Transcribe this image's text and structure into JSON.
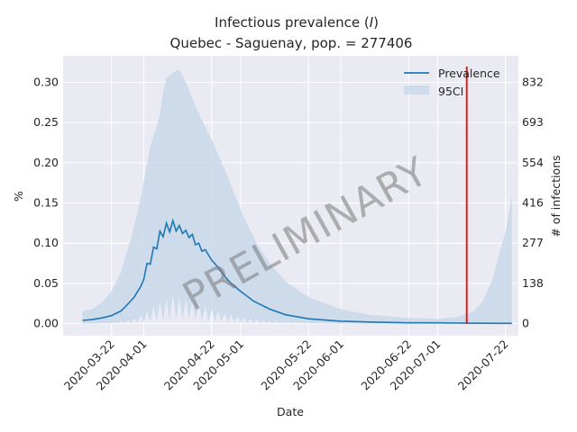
{
  "chart_data": {
    "type": "line",
    "title_line1": "Infectious prevalence (",
    "title_italic": "I",
    "title_line1_end": ")",
    "title_line2": "Quebec - Saguenay, pop. = 277406",
    "xlabel": "Date",
    "ylabel": "%",
    "ylabel_right": "# of infections",
    "watermark": "PRELIMINARY",
    "ylim": [
      -0.015,
      0.333
    ],
    "yticks": [
      0.0,
      0.05,
      0.1,
      0.15,
      0.2,
      0.25,
      0.3
    ],
    "ytick_labels": [
      "0.00",
      "0.05",
      "0.10",
      "0.15",
      "0.20",
      "0.25",
      "0.30"
    ],
    "yticks_right": [
      0,
      138,
      277,
      416,
      554,
      693,
      832
    ],
    "xlim": [
      "2020-03-07",
      "2020-07-26"
    ],
    "xticks": [
      "2020-03-22",
      "2020-04-01",
      "2020-04-22",
      "2020-05-01",
      "2020-05-22",
      "2020-06-01",
      "2020-06-22",
      "2020-07-01",
      "2020-07-22"
    ],
    "vline_date": "2020-07-10",
    "vline_color": "#ff0000",
    "line_color": "#1f77b4",
    "band_color": "#c8d8ea",
    "grid": true,
    "legend_position": "top-right",
    "series": [
      {
        "name": "Prevalence",
        "points": [
          [
            "2020-03-13",
            0.004
          ],
          [
            "2020-03-16",
            0.005
          ],
          [
            "2020-03-19",
            0.007
          ],
          [
            "2020-03-22",
            0.01
          ],
          [
            "2020-03-25",
            0.016
          ],
          [
            "2020-03-27",
            0.024
          ],
          [
            "2020-03-29",
            0.033
          ],
          [
            "2020-03-31",
            0.046
          ],
          [
            "2020-04-01",
            0.055
          ],
          [
            "2020-04-02",
            0.075
          ],
          [
            "2020-04-03",
            0.074
          ],
          [
            "2020-04-04",
            0.095
          ],
          [
            "2020-04-05",
            0.093
          ],
          [
            "2020-04-06",
            0.115
          ],
          [
            "2020-04-07",
            0.108
          ],
          [
            "2020-04-08",
            0.125
          ],
          [
            "2020-04-09",
            0.114
          ],
          [
            "2020-04-10",
            0.128
          ],
          [
            "2020-04-11",
            0.115
          ],
          [
            "2020-04-12",
            0.122
          ],
          [
            "2020-04-13",
            0.112
          ],
          [
            "2020-04-14",
            0.116
          ],
          [
            "2020-04-15",
            0.107
          ],
          [
            "2020-04-16",
            0.111
          ],
          [
            "2020-04-17",
            0.098
          ],
          [
            "2020-04-18",
            0.1
          ],
          [
            "2020-04-19",
            0.09
          ],
          [
            "2020-04-20",
            0.092
          ],
          [
            "2020-04-22",
            0.079
          ],
          [
            "2020-04-24",
            0.07
          ],
          [
            "2020-04-26",
            0.059
          ],
          [
            "2020-04-28",
            0.05
          ],
          [
            "2020-05-01",
            0.04
          ],
          [
            "2020-05-05",
            0.028
          ],
          [
            "2020-05-10",
            0.018
          ],
          [
            "2020-05-15",
            0.011
          ],
          [
            "2020-05-22",
            0.006
          ],
          [
            "2020-06-01",
            0.003
          ],
          [
            "2020-06-10",
            0.002
          ],
          [
            "2020-06-22",
            0.001
          ],
          [
            "2020-07-01",
            0.001
          ],
          [
            "2020-07-10",
            0.0005
          ],
          [
            "2020-07-22",
            0.0003
          ],
          [
            "2020-07-24",
            0.0003
          ]
        ]
      },
      {
        "name": "95CI",
        "upper": [
          [
            "2020-03-13",
            0.016
          ],
          [
            "2020-03-16",
            0.018
          ],
          [
            "2020-03-19",
            0.026
          ],
          [
            "2020-03-22",
            0.04
          ],
          [
            "2020-03-25",
            0.065
          ],
          [
            "2020-03-28",
            0.105
          ],
          [
            "2020-03-31",
            0.155
          ],
          [
            "2020-04-03",
            0.22
          ],
          [
            "2020-04-06",
            0.26
          ],
          [
            "2020-04-07",
            0.288
          ],
          [
            "2020-04-08",
            0.305
          ],
          [
            "2020-04-10",
            0.312
          ],
          [
            "2020-04-12",
            0.316
          ],
          [
            "2020-04-14",
            0.3
          ],
          [
            "2020-04-17",
            0.27
          ],
          [
            "2020-04-20",
            0.245
          ],
          [
            "2020-04-23",
            0.22
          ],
          [
            "2020-04-26",
            0.192
          ],
          [
            "2020-04-29",
            0.162
          ],
          [
            "2020-05-02",
            0.132
          ],
          [
            "2020-05-06",
            0.1
          ],
          [
            "2020-05-10",
            0.075
          ],
          [
            "2020-05-15",
            0.052
          ],
          [
            "2020-05-22",
            0.033
          ],
          [
            "2020-06-01",
            0.018
          ],
          [
            "2020-06-10",
            0.011
          ],
          [
            "2020-06-22",
            0.007
          ],
          [
            "2020-07-01",
            0.006
          ],
          [
            "2020-07-07",
            0.008
          ],
          [
            "2020-07-12",
            0.015
          ],
          [
            "2020-07-15",
            0.028
          ],
          [
            "2020-07-18",
            0.055
          ],
          [
            "2020-07-20",
            0.085
          ],
          [
            "2020-07-22",
            0.115
          ],
          [
            "2020-07-24",
            0.16
          ]
        ],
        "lower": [
          [
            "2020-03-13",
            0.0
          ],
          [
            "2020-03-22",
            0.001
          ],
          [
            "2020-03-28",
            0.005
          ],
          [
            "2020-04-01",
            0.012
          ],
          [
            "2020-04-05",
            0.025
          ],
          [
            "2020-04-10",
            0.035
          ],
          [
            "2020-04-15",
            0.03
          ],
          [
            "2020-04-22",
            0.018
          ],
          [
            "2020-05-01",
            0.008
          ],
          [
            "2020-05-10",
            0.003
          ],
          [
            "2020-05-22",
            0.001
          ],
          [
            "2020-06-01",
            0.0
          ],
          [
            "2020-07-24",
            0.0
          ]
        ]
      }
    ]
  }
}
